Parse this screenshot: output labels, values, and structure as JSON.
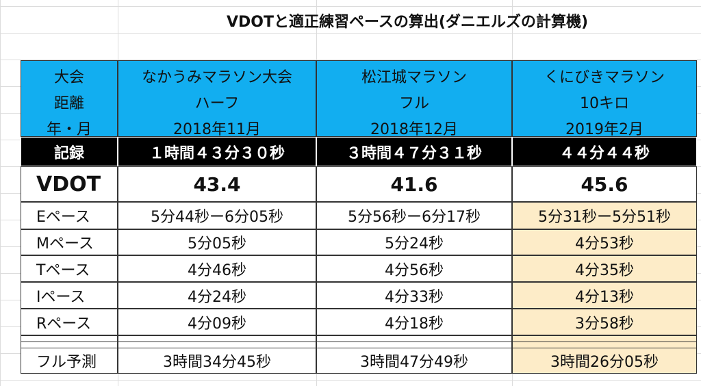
{
  "title": "VDOTと適正練習ペースの算出(ダニエルズの計算機)",
  "table": {
    "header_labels": [
      "大会",
      "距離",
      "年・月"
    ],
    "columns": [
      {
        "race": "なかうみマラソン大会",
        "distance": "ハーフ",
        "date": "2018年11月"
      },
      {
        "race": "松江城マラソン",
        "distance": "フル",
        "date": "2018年12月"
      },
      {
        "race": "くにびきマラソン",
        "distance": "10キロ",
        "date": "2019年2月"
      }
    ],
    "rows": [
      {
        "label": "記録",
        "values": [
          "１時間４３分３０秒",
          "３時間４７分３１秒",
          "４４分４４秒"
        ]
      },
      {
        "label": "VDOT",
        "values": [
          43.4,
          41.6,
          45.6
        ]
      },
      {
        "label": "Eペース",
        "values": [
          "5分44秒ー6分05秒",
          "5分56秒ー6分17秒",
          "5分31秒ー5分51秒"
        ]
      },
      {
        "label": "Mペース",
        "values": [
          "5分05秒",
          "5分24秒",
          "4分53秒"
        ]
      },
      {
        "label": "Tペース",
        "values": [
          "4分46秒",
          "4分56秒",
          "4分35秒"
        ]
      },
      {
        "label": "Iペース",
        "values": [
          "4分24秒",
          "4分33秒",
          "4分13秒"
        ]
      },
      {
        "label": "Rペース",
        "values": [
          "4分09秒",
          "4分18秒",
          "3分58秒"
        ]
      },
      {
        "label": "フル予測",
        "values": [
          "3時間34分45秒",
          "3時間47分49秒",
          "3時間26分05秒"
        ]
      }
    ]
  }
}
